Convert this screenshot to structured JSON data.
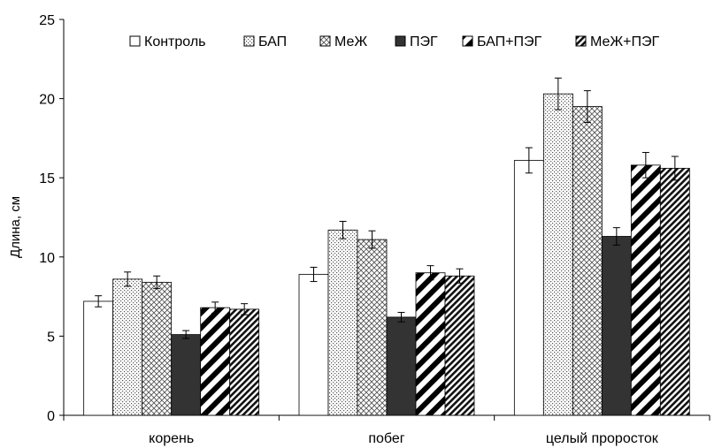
{
  "chart_data": {
    "type": "bar",
    "ylabel": "Длина, см",
    "xlabel": "",
    "ylim": [
      0,
      25
    ],
    "yticks": [
      0,
      5,
      10,
      15,
      20,
      25
    ],
    "grid": false,
    "legend_position": "top",
    "categories": [
      "корень",
      "побег",
      "целый проросток"
    ],
    "series": [
      {
        "name": "Контроль",
        "pattern": "white",
        "values": [
          7.2,
          8.9,
          16.1
        ],
        "errors": [
          0.35,
          0.45,
          0.8
        ]
      },
      {
        "name": "БАП",
        "pattern": "dots",
        "values": [
          8.6,
          11.7,
          20.3
        ],
        "errors": [
          0.45,
          0.55,
          1.0
        ]
      },
      {
        "name": "МеЖ",
        "pattern": "crosshatch",
        "values": [
          8.4,
          11.1,
          19.5
        ],
        "errors": [
          0.4,
          0.55,
          1.0
        ]
      },
      {
        "name": "ПЭГ",
        "pattern": "solid-dark",
        "values": [
          5.1,
          6.2,
          11.3
        ],
        "errors": [
          0.25,
          0.3,
          0.55
        ]
      },
      {
        "name": "БАП+ПЭГ",
        "pattern": "wide-diagonal",
        "values": [
          6.8,
          9.0,
          15.8
        ],
        "errors": [
          0.35,
          0.45,
          0.8
        ]
      },
      {
        "name": "МеЖ+ПЭГ",
        "pattern": "narrow-diagonal",
        "values": [
          6.7,
          8.8,
          15.6
        ],
        "errors": [
          0.35,
          0.45,
          0.75
        ]
      }
    ]
  }
}
